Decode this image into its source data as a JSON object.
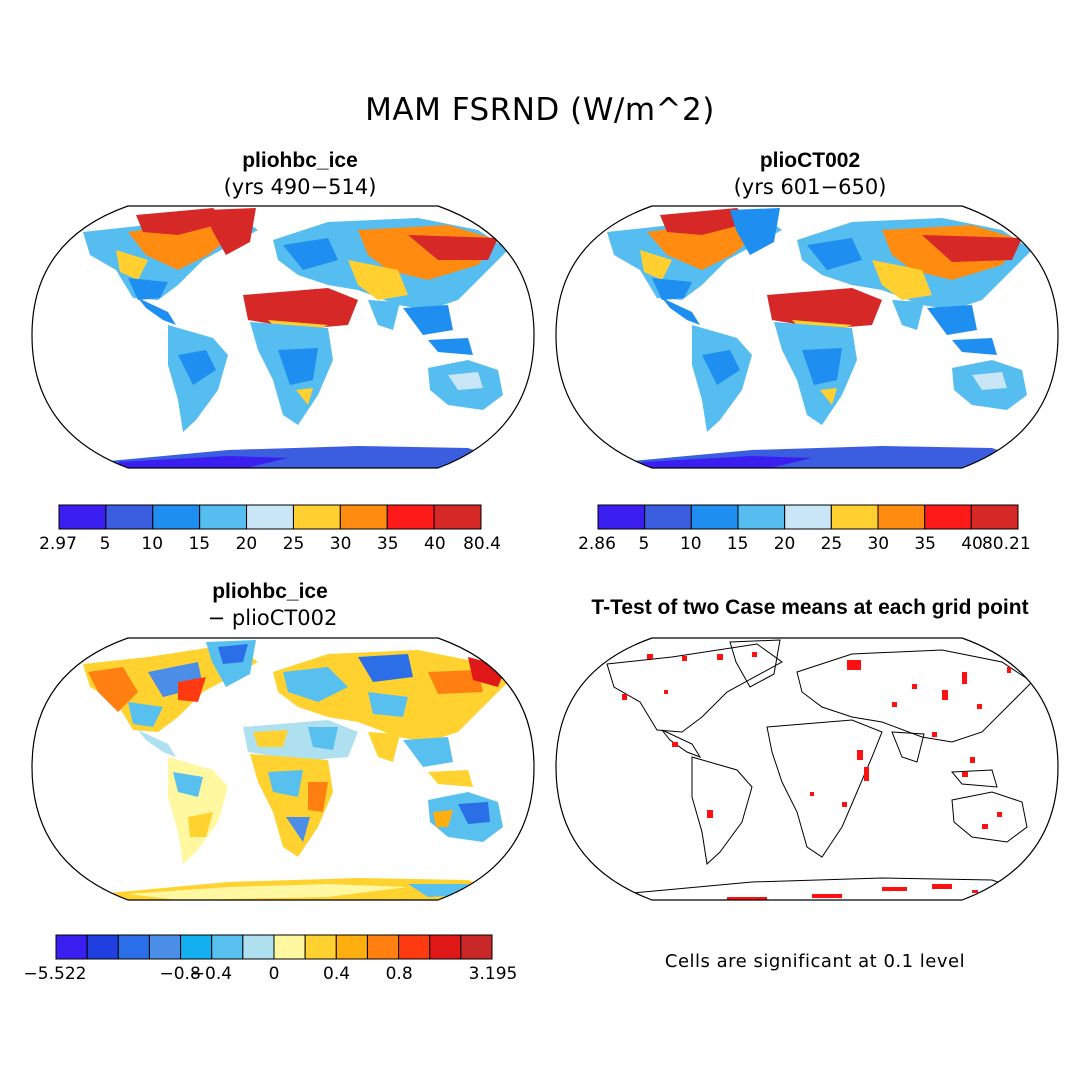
{
  "figure": {
    "title": "MAM FSRND (W/m^2)"
  },
  "panels": [
    {
      "title": "pliohbc_ice",
      "subtitle": "(yrs 490−514)",
      "colorbar": {
        "colors": [
          "#3a1ff0",
          "#3b5ee0",
          "#1e8ef0",
          "#55bdf0",
          "#c8e6f5",
          "#ffd030",
          "#ff8c10",
          "#ff1a1a",
          "#d72828"
        ],
        "labels": [
          "2.97",
          "5",
          "10",
          "15",
          "20",
          "25",
          "30",
          "35",
          "40",
          "80.4"
        ]
      }
    },
    {
      "title": "plioCT002",
      "subtitle": "(yrs 601−650)",
      "colorbar": {
        "colors": [
          "#3a1ff0",
          "#3b5ee0",
          "#1e8ef0",
          "#55bdf0",
          "#c8e6f5",
          "#ffd030",
          "#ff8c10",
          "#ff1a1a",
          "#d72828"
        ],
        "labels": [
          "2.86",
          "5",
          "10",
          "15",
          "20",
          "25",
          "30",
          "35",
          "40",
          "80.21"
        ]
      }
    },
    {
      "title": "pliohbc_ice",
      "subtitle": "− plioCT002",
      "colorbar": {
        "colors": [
          "#3a1ff0",
          "#1f3fe0",
          "#2a6ee8",
          "#4a8ee8",
          "#12b0f0",
          "#58c0ee",
          "#aee0f0",
          "#fff8a0",
          "#ffd230",
          "#ffae10",
          "#ff7f10",
          "#ff3a10",
          "#e01818",
          "#c82828"
        ],
        "labels": [
          "−5.522",
          "−0.8",
          "−0.4",
          "0",
          "0.4",
          "0.8",
          "3.195"
        ]
      }
    },
    {
      "title": "T-Test of two Case means at each grid point",
      "note": "Cells are significant at 0.1 level"
    }
  ]
}
